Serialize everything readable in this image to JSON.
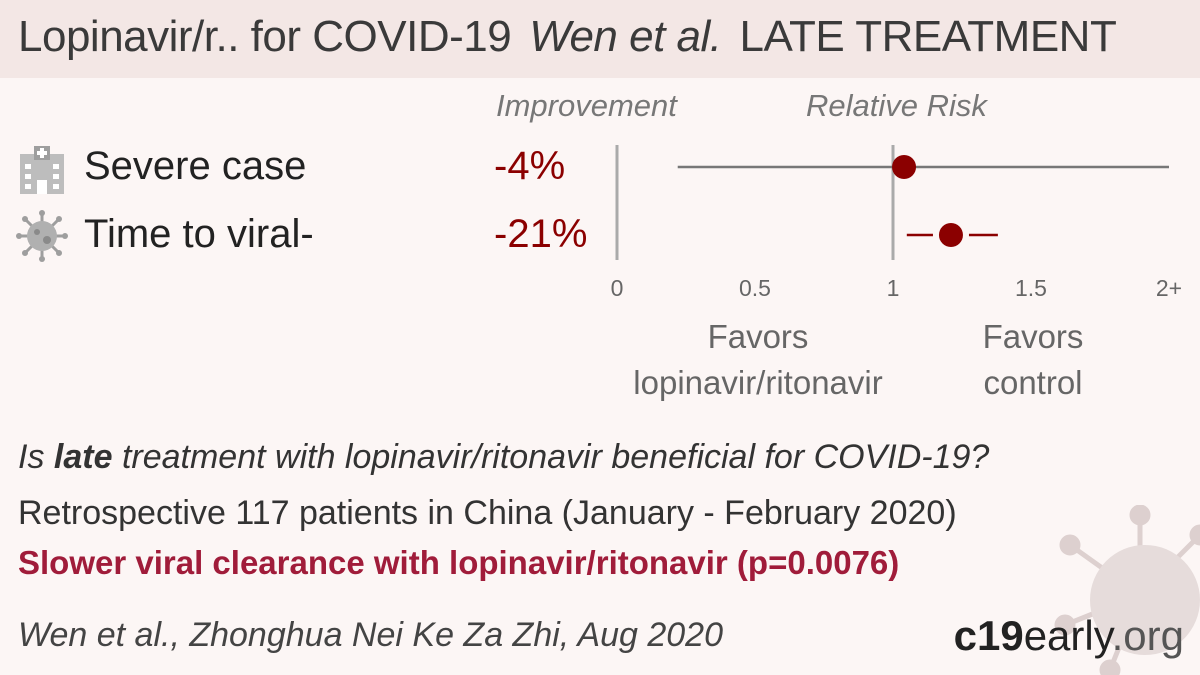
{
  "header": {
    "treatment": "Lopinavir/r.. for COVID-19",
    "author": "Wen et al.",
    "stage": "LATE TREATMENT"
  },
  "columns": {
    "improvement": "Improvement",
    "relative_risk": "Relative Risk"
  },
  "chart_data": {
    "type": "forest",
    "x_ticks": [
      "0",
      "0.5",
      "1",
      "1.5",
      "2+"
    ],
    "xlim": [
      0,
      2
    ],
    "outcomes": [
      {
        "label": "Severe case",
        "improvement": "-4%",
        "rr": 1.04,
        "ci": [
          0.22,
          2.0
        ],
        "icon": "hospital-icon"
      },
      {
        "label": "Time to viral-",
        "improvement": "-21%",
        "rr": 1.21,
        "ci": [
          1.05,
          1.38
        ],
        "icon": "virus-icon"
      }
    ],
    "favors_left": "Favors\nlopinavir/ritonavir",
    "favors_right": "Favors\ncontrol",
    "colors": {
      "point": "#8b0000",
      "severe_ci": "#777777",
      "viral_ci": "#8b0000",
      "axis": "#aaaaaa"
    }
  },
  "summary": {
    "question_pre": "Is ",
    "question_bold": "late",
    "question_post": " treatment with lopinavir/ritonavir beneficial for COVID-19?",
    "description": "Retrospective 117 patients in China (January - February 2020)",
    "conclusion": "Slower viral clearance with lopinavir/ritonavir (p=0.0076)"
  },
  "citation": "Wen et al., Zhonghua Nei Ke Za Zhi, Aug 2020",
  "brand": {
    "c19": "c19",
    "early": "early",
    "org": ".org"
  }
}
